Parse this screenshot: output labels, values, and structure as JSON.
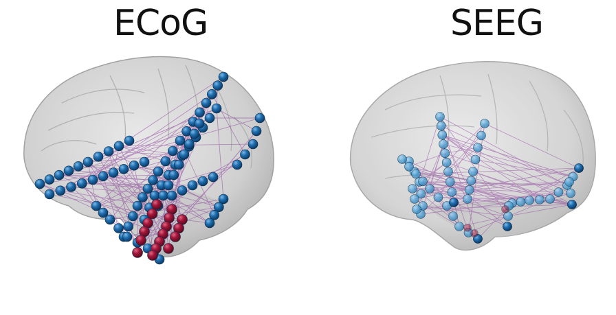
{
  "panels": [
    {
      "title": "ECoG"
    },
    {
      "title": "SEEG"
    }
  ],
  "colors": {
    "brain_fill": "#cfcfcf",
    "brain_edge": "#9a9a9a",
    "electrode_blue": "#1f6fb0",
    "electrode_red": "#a3153a",
    "electrode_light_blue": "#5aa8d8",
    "connection_purple": "#8a3a9a"
  },
  "icons": [
    "brain-surface-left",
    "brain-surface-right"
  ]
}
